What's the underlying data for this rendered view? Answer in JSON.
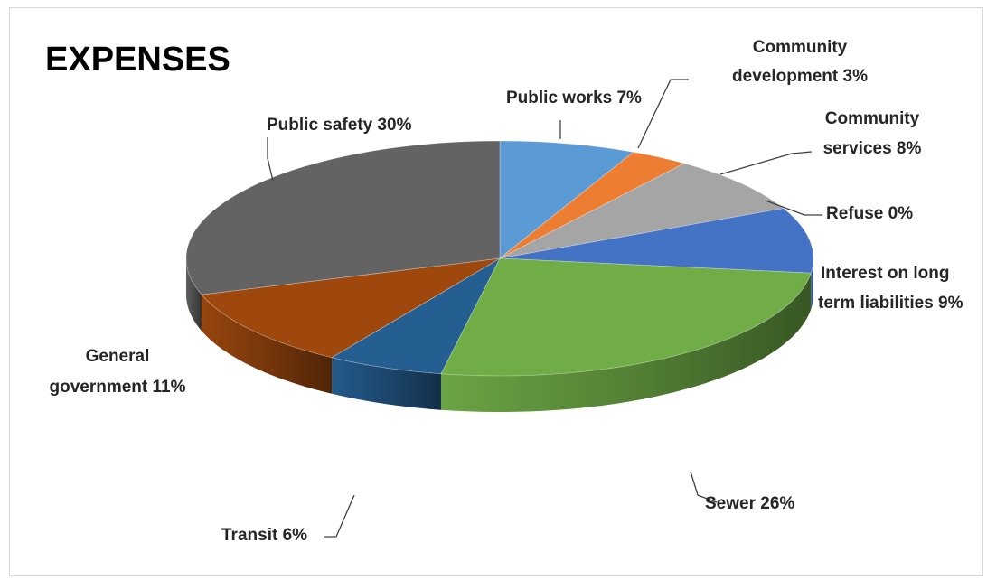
{
  "chart_data": {
    "type": "pie",
    "title": "EXPENSES",
    "slices": [
      {
        "label": "Public works",
        "value": 7,
        "display": "Public works 7%",
        "color": "#5b9bd5"
      },
      {
        "label": "Community development",
        "value": 3,
        "display": "Community development 3%",
        "color": "#ed7d31"
      },
      {
        "label": "Community services",
        "value": 8,
        "display": "Community services 8%",
        "color": "#a5a5a5"
      },
      {
        "label": "Refuse",
        "value": 0,
        "display": "Refuse 0%",
        "color": "#ffc000"
      },
      {
        "label": "Interest on long term liabilities",
        "value": 9,
        "display": "Interest on long term liabilities 9%",
        "color": "#4472c4"
      },
      {
        "label": "Sewer",
        "value": 26,
        "display": "Sewer 26%",
        "color": "#70ad47"
      },
      {
        "label": "Transit",
        "value": 6,
        "display": "Transit 6%",
        "color": "#255e91"
      },
      {
        "label": "General government",
        "value": 11,
        "display": "General government 11%",
        "color": "#9e480e"
      },
      {
        "label": "Public safety",
        "value": 30,
        "display": "Public safety 30%",
        "color": "#636363"
      }
    ],
    "label_lines": {
      "Public works": [
        "Public works 7%"
      ],
      "Community development": [
        "Community",
        "development 3%"
      ],
      "Community services": [
        "Community",
        "services 8%"
      ],
      "Refuse": [
        "Refuse 0%"
      ],
      "Interest on long term liabilities": [
        "Interest on long",
        "term liabilities 9%"
      ],
      "Sewer": [
        "Sewer 26%"
      ],
      "Transit": [
        "Transit 6%"
      ],
      "General government": [
        "General",
        "government 11%"
      ],
      "Public safety": [
        "Public safety 30%"
      ]
    },
    "style": "3d-pie",
    "legend": "none",
    "data_labels": "outside with leader lines"
  }
}
